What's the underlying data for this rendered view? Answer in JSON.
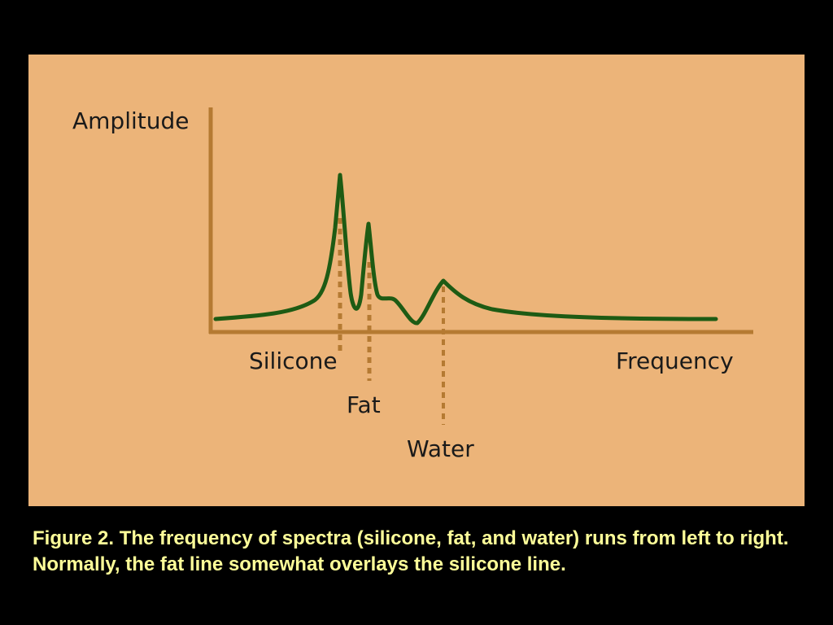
{
  "diagram": {
    "y_axis_label": "Amplitude",
    "x_axis_label": "Frequency",
    "peaks": [
      {
        "name": "silicone",
        "label": "Silicone"
      },
      {
        "name": "fat",
        "label": "Fat"
      },
      {
        "name": "water",
        "label": "Water"
      }
    ]
  },
  "colors": {
    "background": "#000000",
    "panel": "#ECB479",
    "axis": "#B57A32",
    "curve": "#1E5B14",
    "marker": "#B57A32",
    "caption": "#FFFF99"
  },
  "caption": {
    "text": "Figure 2. The frequency of spectra (silicone, fat, and water) runs from left to right.  Normally, the fat line somewhat overlays the silicone line."
  }
}
